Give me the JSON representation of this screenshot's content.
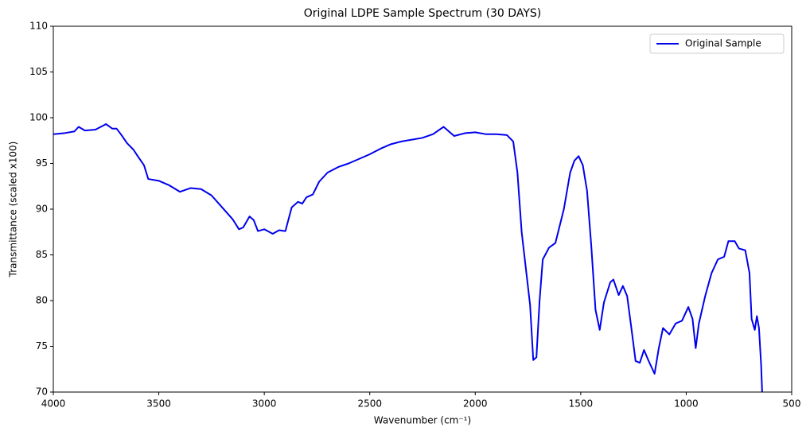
{
  "chart_data": {
    "type": "line",
    "title": "Original LDPE Sample Spectrum (30 DAYS)",
    "x_label": "Wavenumber (cm⁻¹)",
    "y_label": "Transmittance (scaled x100)",
    "x": [
      4000,
      3950,
      3900,
      3880,
      3850,
      3800,
      3750,
      3720,
      3700,
      3680,
      3650,
      3620,
      3600,
      3570,
      3550,
      3500,
      3450,
      3400,
      3350,
      3300,
      3250,
      3200,
      3150,
      3120,
      3100,
      3070,
      3050,
      3030,
      3000,
      2960,
      2930,
      2900,
      2870,
      2840,
      2820,
      2800,
      2770,
      2740,
      2700,
      2650,
      2600,
      2550,
      2500,
      2450,
      2400,
      2350,
      2300,
      2250,
      2200,
      2150,
      2100,
      2050,
      2000,
      1950,
      1900,
      1850,
      1820,
      1800,
      1780,
      1760,
      1740,
      1725,
      1710,
      1695,
      1680,
      1650,
      1620,
      1580,
      1550,
      1530,
      1510,
      1490,
      1470,
      1450,
      1430,
      1410,
      1390,
      1360,
      1345,
      1320,
      1300,
      1280,
      1260,
      1240,
      1220,
      1200,
      1180,
      1150,
      1130,
      1110,
      1080,
      1050,
      1020,
      990,
      970,
      955,
      940,
      910,
      880,
      850,
      820,
      800,
      770,
      750,
      720,
      700,
      690,
      675,
      665,
      655,
      645,
      640
    ],
    "series": [
      {
        "name": "Original Sample",
        "color": "#0000ee",
        "values": [
          98.2,
          98.3,
          98.5,
          99.0,
          98.6,
          98.7,
          99.3,
          98.8,
          98.8,
          98.2,
          97.2,
          96.5,
          95.8,
          94.8,
          93.3,
          93.1,
          92.6,
          91.9,
          92.3,
          92.2,
          91.5,
          90.2,
          88.9,
          87.8,
          88.0,
          89.2,
          88.8,
          87.6,
          87.8,
          87.3,
          87.7,
          87.6,
          90.2,
          90.8,
          90.6,
          91.3,
          91.6,
          93.0,
          94.0,
          94.6,
          95.0,
          95.5,
          96.0,
          96.6,
          97.1,
          97.4,
          97.6,
          97.8,
          98.2,
          99.0,
          98.0,
          98.3,
          98.4,
          98.2,
          98.2,
          98.1,
          97.4,
          94.0,
          87.5,
          83.5,
          79.5,
          73.5,
          73.8,
          80.0,
          84.5,
          85.8,
          86.3,
          90.0,
          94.0,
          95.3,
          95.8,
          94.8,
          92.0,
          86.0,
          79.0,
          76.8,
          79.8,
          82.0,
          82.3,
          80.6,
          81.6,
          80.5,
          77.0,
          73.4,
          73.2,
          74.6,
          73.5,
          72.0,
          74.8,
          77.0,
          76.3,
          77.5,
          77.8,
          79.3,
          78.0,
          74.8,
          77.5,
          80.5,
          83.0,
          84.5,
          84.8,
          86.5,
          86.5,
          85.7,
          85.5,
          83.0,
          78.0,
          76.8,
          78.3,
          77.0,
          73.0,
          70.0
        ]
      }
    ],
    "xlim": [
      4000,
      500
    ],
    "xticks": [
      4000,
      3500,
      3000,
      2500,
      2000,
      1500,
      1000,
      500
    ],
    "ylim": [
      70,
      110
    ],
    "yticks": [
      70,
      75,
      80,
      85,
      90,
      95,
      100,
      105,
      110
    ],
    "legend": "upper right",
    "grid": false
  }
}
